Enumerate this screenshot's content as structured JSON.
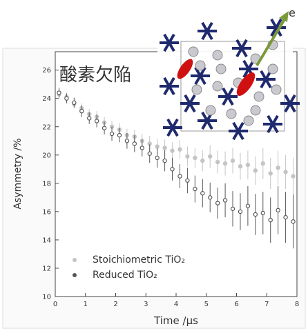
{
  "chart_data": {
    "type": "scatter",
    "x_label": "Time /μs",
    "y_label": "Asymmetry /%",
    "annotation": "酸素欠陥",
    "inset_label": "e",
    "xlim": [
      0,
      8
    ],
    "ylim": [
      10,
      27.3
    ],
    "xticks": [
      0,
      1,
      2,
      3,
      4,
      5,
      6,
      7,
      8
    ],
    "yticks": [
      10,
      12,
      14,
      16,
      18,
      20,
      22,
      24,
      26
    ],
    "x": [
      0.125,
      0.375,
      0.625,
      0.875,
      1.125,
      1.375,
      1.625,
      1.875,
      2.125,
      2.375,
      2.625,
      2.875,
      3.125,
      3.375,
      3.625,
      3.875,
      4.125,
      4.375,
      4.625,
      4.875,
      5.125,
      5.375,
      5.625,
      5.875,
      6.125,
      6.375,
      6.625,
      6.875,
      7.125,
      7.375,
      7.625,
      7.875
    ],
    "legend": "lower left",
    "series": [
      {
        "name": "Stoichiometric TiO₂",
        "color": "#c4c4c4",
        "values": [
          24.3,
          24.1,
          23.6,
          23.3,
          22.9,
          22.7,
          22.3,
          22.0,
          21.8,
          21.4,
          21.3,
          21.0,
          20.8,
          20.6,
          20.5,
          20.3,
          20.4,
          19.9,
          19.8,
          19.6,
          19.9,
          19.5,
          19.4,
          19.6,
          19.2,
          19.3,
          18.9,
          19.4,
          18.7,
          19.1,
          18.8,
          18.5
        ],
        "errors": [
          0.3,
          0.3,
          0.3,
          0.35,
          0.35,
          0.4,
          0.4,
          0.4,
          0.45,
          0.45,
          0.5,
          0.5,
          0.55,
          0.55,
          0.6,
          0.6,
          0.65,
          0.7,
          0.7,
          0.75,
          0.8,
          0.8,
          0.85,
          0.9,
          0.95,
          1.0,
          1.0,
          1.1,
          1.1,
          1.2,
          1.2,
          1.3
        ]
      },
      {
        "name": "Reduced TiO₂",
        "color": "#555555",
        "values": [
          24.4,
          24.0,
          23.7,
          23.1,
          22.6,
          22.4,
          21.9,
          21.5,
          21.4,
          21.0,
          20.8,
          20.5,
          20.1,
          19.8,
          19.6,
          19.0,
          18.5,
          18.2,
          17.6,
          17.3,
          17.0,
          16.6,
          16.8,
          16.2,
          16.0,
          16.4,
          15.8,
          15.9,
          15.4,
          16.1,
          15.6,
          15.3
        ],
        "errors": [
          0.35,
          0.35,
          0.35,
          0.4,
          0.4,
          0.45,
          0.45,
          0.5,
          0.5,
          0.55,
          0.6,
          0.6,
          0.65,
          0.7,
          0.75,
          0.8,
          0.85,
          0.9,
          0.95,
          1.0,
          1.05,
          1.1,
          1.2,
          1.25,
          1.3,
          1.4,
          1.45,
          1.5,
          1.6,
          1.7,
          1.8,
          1.9
        ]
      }
    ]
  }
}
